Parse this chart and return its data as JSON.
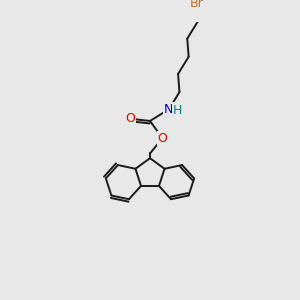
{
  "bg_color": "#e8e8e8",
  "bond_color": "#1a1a1a",
  "bond_width": 1.4,
  "atom_colors": {
    "Br": "#b87333",
    "O": "#dd0000",
    "N": "#0000cc",
    "H": "#008888",
    "C": "#1a1a1a"
  },
  "font_size": 9
}
